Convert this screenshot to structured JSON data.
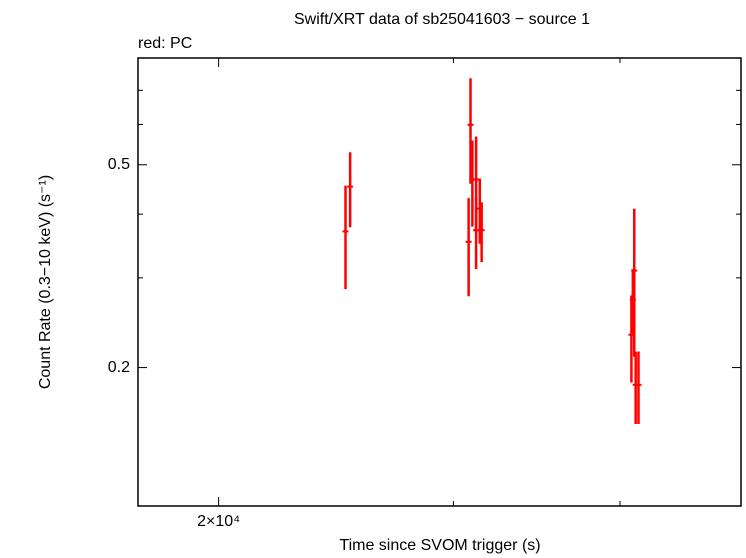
{
  "chart_data": {
    "type": "errorbar-scatter",
    "title": "Swift/XRT data of sb25041603 − source 1",
    "subtitle": "red: PC",
    "x_label": "Time since SVOM trigger (s)",
    "y_label": "Count Rate (0.3−10 keV) (s⁻¹)",
    "x_log": true,
    "y_log": true,
    "xlim": [
      17400,
      49300
    ],
    "ylim": [
      0.107,
      0.81
    ],
    "xticks": [
      {
        "value": 20000,
        "label": "2×10⁴"
      }
    ],
    "xticks_minor": [
      30000,
      40000
    ],
    "yticks": [
      0.5,
      0.2
    ],
    "yticks_minor": [
      0.7,
      0.6,
      0.4,
      0.3
    ],
    "series": [
      {
        "color": "#ff0000",
        "x": [
          24900,
          25100,
          30800,
          30900,
          31000,
          31200,
          31200,
          31400,
          31500,
          40800,
          40900,
          41000,
          41100,
          41300
        ],
        "values": [
          0.37,
          0.453,
          0.353,
          0.599,
          0.468,
          0.372,
          0.468,
          0.41,
          0.372,
          0.232,
          0.272,
          0.31,
          0.185,
          0.185
        ],
        "errors": [
          0.085,
          0.076,
          0.077,
          0.14,
          0.09,
          0.06,
          0.1,
          0.06,
          0.05,
          0.045,
          0.04,
          0.1,
          0.03,
          0.03
        ]
      }
    ]
  }
}
